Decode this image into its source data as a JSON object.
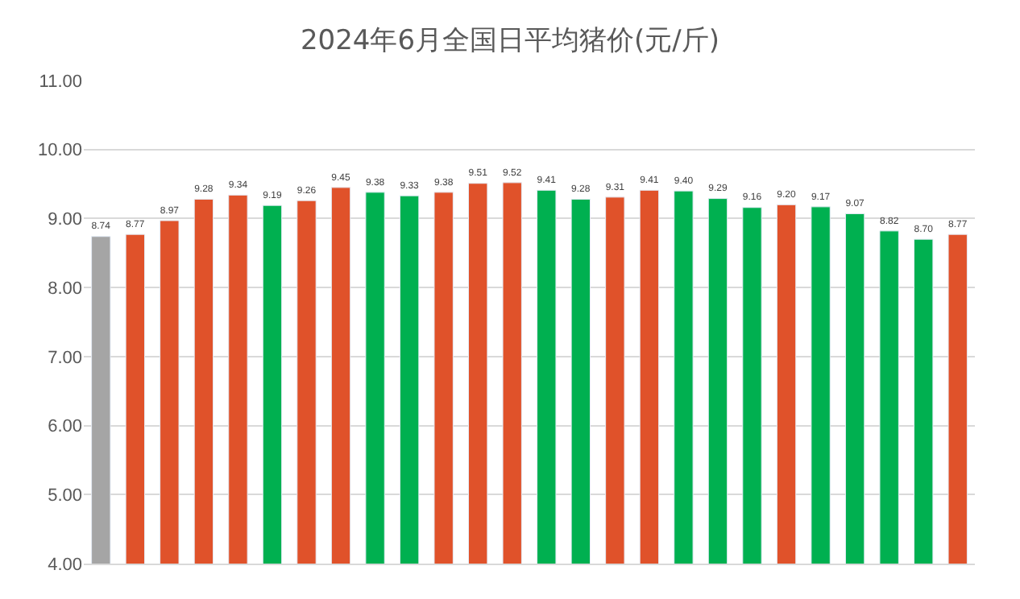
{
  "chart_data": {
    "type": "bar",
    "title": "2024年6月全国日平均猪价(元/斤)",
    "categories": [
      null,
      null,
      null,
      null,
      null,
      null,
      null,
      null,
      null,
      null,
      null,
      null,
      null,
      null,
      null,
      null,
      null,
      null,
      null,
      null,
      null,
      null,
      null,
      null,
      null,
      null
    ],
    "values": [
      8.74,
      8.77,
      8.97,
      9.28,
      9.34,
      9.19,
      9.26,
      9.45,
      9.38,
      9.33,
      9.38,
      9.51,
      9.52,
      9.41,
      9.28,
      9.31,
      9.41,
      9.4,
      9.29,
      9.16,
      9.2,
      9.17,
      9.07,
      8.82,
      8.7,
      8.77
    ],
    "value_labels": [
      "8.74",
      "8.77",
      "8.97",
      "9.28",
      "9.34",
      "9.19",
      "9.26",
      "9.45",
      "9.38",
      "9.33",
      "9.38",
      "9.51",
      "9.52",
      "9.41",
      "9.28",
      "9.31",
      "9.41",
      "9.40",
      "9.29",
      "9.16",
      "9.20",
      "9.17",
      "9.07",
      "8.82",
      "8.70",
      "8.77"
    ],
    "colors": [
      "#a5a5a5",
      "#e0522a",
      "#e0522a",
      "#e0522a",
      "#e0522a",
      "#00b050",
      "#e0522a",
      "#e0522a",
      "#00b050",
      "#00b050",
      "#e0522a",
      "#e0522a",
      "#e0522a",
      "#00b050",
      "#00b050",
      "#e0522a",
      "#e0522a",
      "#00b050",
      "#00b050",
      "#00b050",
      "#e0522a",
      "#00b050",
      "#00b050",
      "#00b050",
      "#00b050",
      "#e0522a"
    ],
    "ylim": [
      4,
      11
    ],
    "yticks": [
      {
        "value": 4,
        "label": "4.00"
      },
      {
        "value": 5,
        "label": "5.00"
      },
      {
        "value": 6,
        "label": "6.00"
      },
      {
        "value": 7,
        "label": "7.00"
      },
      {
        "value": 8,
        "label": "8.00"
      },
      {
        "value": 9,
        "label": "9.00"
      },
      {
        "value": 10,
        "label": "10.00"
      },
      {
        "value": 11,
        "label": "11.00"
      }
    ],
    "grid": "y",
    "legend": false
  }
}
